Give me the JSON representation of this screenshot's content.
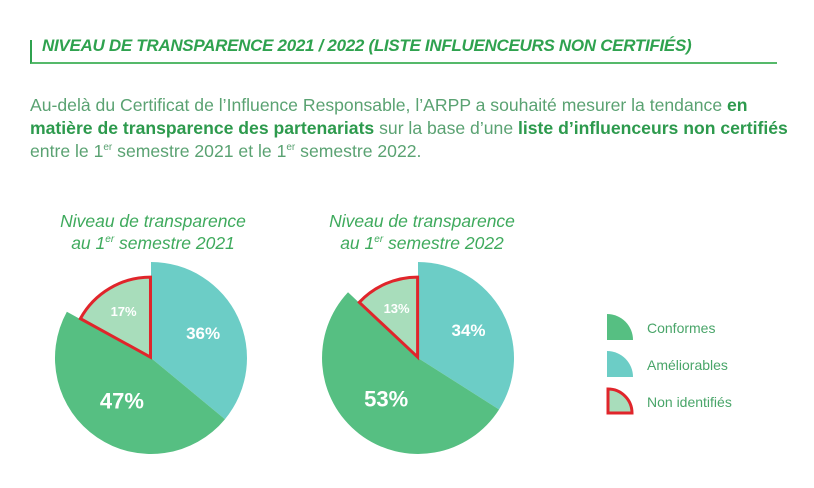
{
  "header": {
    "title": "NIVEAU DE TRANSPARENCE 2021 / 2022 (LISTE INFLUENCEURS NON CERTIFIÉS)"
  },
  "intro": {
    "part1": "Au-delà du Certificat de l’Influence Responsable, l’ARPP a souhaité mesurer la tendance ",
    "bold1": "en matière de transparence des partenariats",
    "part2": " sur la base d’une ",
    "bold2": "liste d’influenceurs non certifiés",
    "part3": " entre le 1",
    "sup1": "er",
    "part4": " semestre 2021 et le 1",
    "sup2": "er",
    "part5": " semestre 2022."
  },
  "colors": {
    "conformes": "#56bf82",
    "ameliorables": "#6ccdc6",
    "non_identifies": "#a8ddbb",
    "non_identifies_border": "#e0252b",
    "label_text": "#ffffff"
  },
  "chart_data": [
    {
      "type": "pie",
      "title_line1": "Niveau de transparence",
      "title_line2_pre": "au 1",
      "title_sup": "er",
      "title_line2_post": " semestre 2021",
      "slices": [
        {
          "key": "ameliorables",
          "label": "Améliorables",
          "value": 36,
          "text": "36%"
        },
        {
          "key": "conformes",
          "label": "Conformes",
          "value": 47,
          "text": "47%"
        },
        {
          "key": "non_identifies",
          "label": "Non identifiés",
          "value": 17,
          "text": "17%"
        }
      ]
    },
    {
      "type": "pie",
      "title_line1": "Niveau de transparence",
      "title_line2_pre": "au 1",
      "title_sup": "er",
      "title_line2_post": " semestre 2022",
      "slices": [
        {
          "key": "ameliorables",
          "label": "Améliorables",
          "value": 34,
          "text": "34%"
        },
        {
          "key": "conformes",
          "label": "Conformes",
          "value": 53,
          "text": "53%"
        },
        {
          "key": "non_identifies",
          "label": "Non identifiés",
          "value": 13,
          "text": "13%"
        }
      ]
    }
  ],
  "legend": {
    "items": [
      {
        "key": "conformes",
        "label": "Conformes"
      },
      {
        "key": "ameliorables",
        "label": "Améliorables"
      },
      {
        "key": "non_identifies",
        "label": "Non identifiés"
      }
    ]
  }
}
